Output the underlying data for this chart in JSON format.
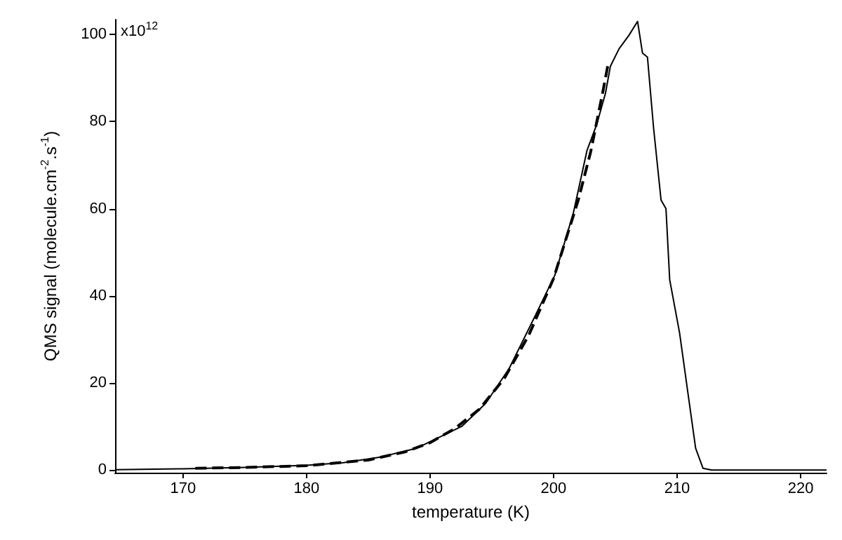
{
  "chart_data": {
    "type": "line",
    "xlabel": "temperature (K)",
    "ylabel": "QMS signal (molecule.cm$^{-2}$.s$^{-1}$)",
    "xlim": [
      164.5,
      222.1
    ],
    "ylim": [
      -0.6,
      103.4
    ],
    "xticks": [
      170,
      180,
      190,
      200,
      210,
      220
    ],
    "yticks": [
      0,
      20,
      40,
      60,
      80,
      100
    ],
    "annotations": [
      "x10$^{12}$"
    ],
    "grid": false,
    "marker": "none",
    "series": [
      {
        "color": "#000000",
        "line_style": "solid",
        "x": [
          164.5,
          170,
          175,
          180,
          183,
          186,
          188.9,
          190.5,
          192.6,
          194.5,
          196.4,
          198.2,
          200.1,
          201.6,
          202.7,
          203.5,
          204.2,
          204.6,
          205.3,
          206.1,
          206.8,
          207.2,
          207.6,
          208.1,
          208.7,
          209.1,
          209.4,
          210.2,
          210.9,
          211.5,
          212.1,
          212.8,
          222.1
        ],
        "values": [
          0.1,
          0.3,
          0.6,
          1.1,
          1.7,
          3,
          5,
          7.2,
          10.1,
          15.3,
          23.3,
          33.6,
          44.7,
          59,
          73.3,
          79.4,
          86.5,
          92.7,
          96.7,
          99.8,
          103,
          95.7,
          94.8,
          78.4,
          62,
          60,
          43.7,
          31.5,
          17.2,
          5,
          0.4,
          0,
          0
        ]
      },
      {
        "color": "#000000",
        "line_style": "dashed",
        "x": [
          171,
          175,
          180,
          185,
          188,
          190,
          192,
          194,
          196,
          198,
          200,
          202,
          203,
          204,
          204.4
        ],
        "values": [
          0.4,
          0.6,
          1.0,
          2.3,
          4.2,
          6.3,
          9.5,
          14,
          21,
          31,
          44,
          62,
          73,
          87,
          93
        ]
      }
    ]
  }
}
